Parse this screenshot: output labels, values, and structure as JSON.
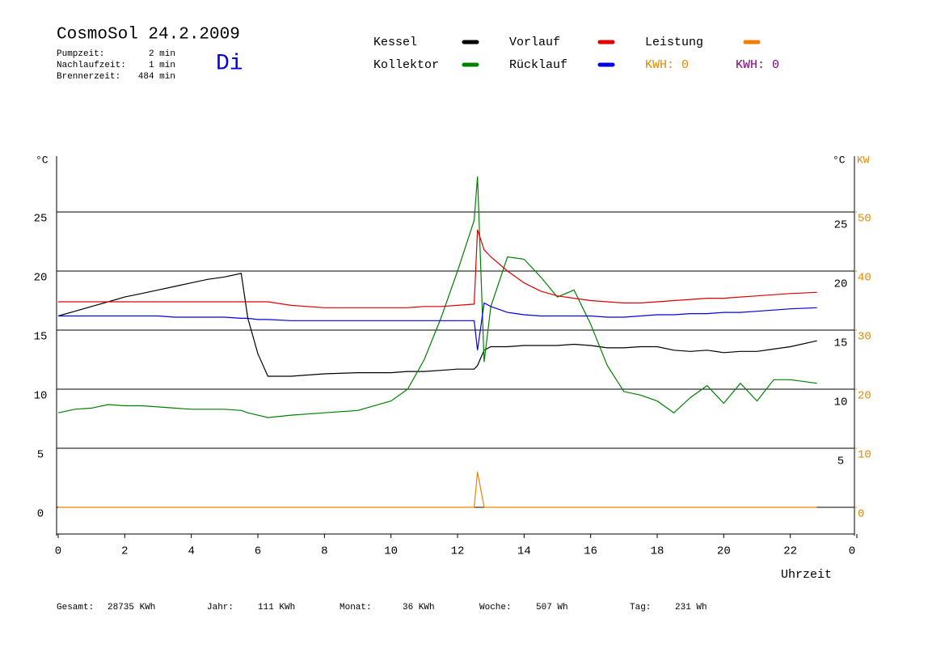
{
  "chart_data": {
    "type": "line",
    "title": "CosmoSol 24.2.2009",
    "weekday": "Di",
    "info": [
      {
        "label": "Pumpzeit:",
        "value": "2 min"
      },
      {
        "label": "Nachlaufzeit:",
        "value": "1 min"
      },
      {
        "label": "Brennerzeit:",
        "value": "484 min"
      }
    ],
    "kwh_labels": [
      {
        "text": "KWH: 0",
        "color": "#e08a00"
      },
      {
        "text": "KWH: 0",
        "color": "#800080"
      }
    ],
    "y_label": "°C",
    "y_label_right": "°C",
    "y2_label": "KW",
    "y2_color": "#e08a00",
    "x_label": "Uhrzeit",
    "xlim": [
      0,
      24
    ],
    "xticks": [
      0,
      2,
      4,
      6,
      8,
      10,
      12,
      14,
      16,
      18,
      20,
      22,
      {
        "value": 24,
        "label": "0"
      }
    ],
    "ylim": [
      -2.3,
      29.7
    ],
    "yticks": [
      0,
      5,
      10,
      15,
      20,
      25
    ],
    "yticks_right": [
      5,
      10,
      15,
      20,
      25
    ],
    "y2lim": [
      -4.6,
      59.4
    ],
    "y2ticks": [
      0,
      10,
      20,
      30,
      40,
      50
    ],
    "grid": true,
    "x": [
      0,
      0.5,
      1,
      1.5,
      2,
      2.5,
      3,
      3.5,
      4,
      4.5,
      5,
      5.5,
      5.7,
      6,
      6.3,
      7,
      8,
      9,
      10,
      10.5,
      11,
      11.5,
      12,
      12.5,
      12.6,
      12.8,
      13,
      13.5,
      14,
      14.5,
      15,
      15.5,
      16,
      16.5,
      17,
      17.5,
      18,
      18.5,
      19,
      19.5,
      20,
      20.5,
      21,
      21.5,
      22,
      22.8
    ],
    "series": [
      {
        "name": "Kessel",
        "color": "#000000",
        "values": [
          16.2,
          16.6,
          17.0,
          17.4,
          17.8,
          18.1,
          18.4,
          18.7,
          19.0,
          19.3,
          19.5,
          19.8,
          16.0,
          13.0,
          11.1,
          11.1,
          11.3,
          11.4,
          11.4,
          11.5,
          11.5,
          11.6,
          11.7,
          11.7,
          12.0,
          13.3,
          13.6,
          13.6,
          13.7,
          13.7,
          13.7,
          13.8,
          13.7,
          13.5,
          13.5,
          13.6,
          13.6,
          13.3,
          13.2,
          13.3,
          13.1,
          13.2,
          13.2,
          13.4,
          13.6,
          14.1
        ]
      },
      {
        "name": "Kollektor",
        "color": "#008000",
        "values": [
          8.0,
          8.3,
          8.4,
          8.7,
          8.6,
          8.6,
          8.5,
          8.4,
          8.3,
          8.3,
          8.3,
          8.2,
          8.0,
          7.8,
          7.6,
          7.8,
          8.0,
          8.2,
          9.0,
          10.0,
          12.5,
          16.0,
          20.0,
          24.3,
          28.0,
          12.3,
          17.0,
          21.2,
          21.0,
          19.5,
          17.8,
          18.4,
          15.5,
          12.0,
          9.8,
          9.5,
          9.0,
          8.0,
          9.3,
          10.3,
          8.8,
          10.5,
          9.0,
          10.8,
          10.8,
          10.5
        ]
      },
      {
        "name": "Vorlauf",
        "color": "#e00000",
        "values": [
          17.4,
          17.4,
          17.4,
          17.4,
          17.4,
          17.4,
          17.4,
          17.4,
          17.4,
          17.4,
          17.4,
          17.4,
          17.4,
          17.4,
          17.4,
          17.1,
          16.9,
          16.9,
          16.9,
          16.9,
          17.0,
          17.0,
          17.1,
          17.2,
          23.5,
          21.8,
          21.2,
          20.0,
          19.0,
          18.3,
          17.9,
          17.7,
          17.5,
          17.4,
          17.3,
          17.3,
          17.4,
          17.5,
          17.6,
          17.7,
          17.7,
          17.8,
          17.9,
          18.0,
          18.1,
          18.2
        ]
      },
      {
        "name": "Rücklauf",
        "color": "#0000e0",
        "values": [
          16.2,
          16.2,
          16.2,
          16.2,
          16.2,
          16.2,
          16.2,
          16.1,
          16.1,
          16.1,
          16.1,
          16.0,
          16.0,
          15.9,
          15.9,
          15.8,
          15.8,
          15.8,
          15.8,
          15.8,
          15.8,
          15.8,
          15.8,
          15.8,
          13.3,
          17.3,
          17.0,
          16.5,
          16.3,
          16.2,
          16.2,
          16.2,
          16.2,
          16.1,
          16.1,
          16.2,
          16.3,
          16.3,
          16.4,
          16.4,
          16.5,
          16.5,
          16.6,
          16.7,
          16.8,
          16.9
        ]
      },
      {
        "name": "Leistung",
        "color": "#f08000",
        "axis": "y2",
        "values": [
          0,
          0,
          0,
          0,
          0,
          0,
          0,
          0,
          0,
          0,
          0,
          0,
          0,
          0,
          0,
          0,
          0,
          0,
          0,
          0,
          0,
          0,
          0,
          0,
          6,
          0,
          0,
          0,
          0,
          0,
          0,
          0,
          0,
          0,
          0,
          0,
          0,
          0,
          0,
          0,
          0,
          0,
          0,
          0,
          0,
          0
        ]
      }
    ],
    "footer": [
      {
        "label": "Gesamt:",
        "value": "28735 KWh"
      },
      {
        "label": "Jahr:",
        "value": "111 KWh"
      },
      {
        "label": "Monat:",
        "value": "36 KWh"
      },
      {
        "label": "Woche:",
        "value": "507 Wh"
      },
      {
        "label": "Tag:",
        "value": "231 Wh"
      }
    ]
  }
}
